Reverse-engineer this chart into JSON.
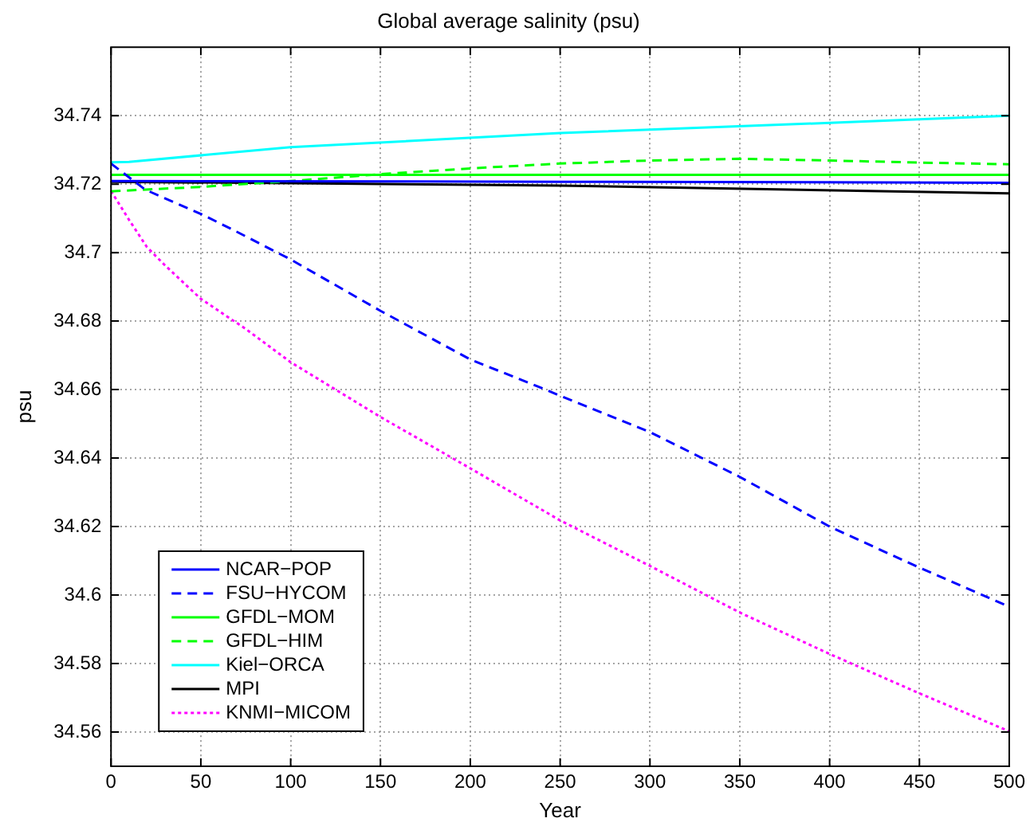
{
  "chart_data": {
    "type": "line",
    "title": "Global average salinity (psu)",
    "xlabel": "Year",
    "ylabel": "psu",
    "xlim": [
      0,
      500
    ],
    "xticks": [
      0,
      50,
      100,
      150,
      200,
      250,
      300,
      350,
      400,
      450,
      500
    ],
    "ylim": [
      34.55,
      34.76
    ],
    "yticks": [
      34.56,
      34.58,
      34.6,
      34.62,
      34.64,
      34.66,
      34.68,
      34.7,
      34.72,
      34.74
    ],
    "grid": true,
    "legend": "bottom left",
    "marker": "none",
    "series": [
      {
        "name": "NCAR−POP",
        "color": "#0000ff",
        "line_style": "solid",
        "x": [
          0,
          250,
          500
        ],
        "values": [
          34.7209,
          34.7207,
          34.7204
        ]
      },
      {
        "name": "FSU−HYCOM",
        "color": "#0000ff",
        "line_style": "dashed",
        "x": [
          0,
          19,
          50,
          67,
          100,
          150,
          200,
          240,
          250,
          300,
          350,
          400,
          450,
          500
        ],
        "values": [
          34.726,
          34.7184,
          34.7113,
          34.7069,
          34.698,
          34.683,
          34.6688,
          34.6604,
          34.6582,
          34.6476,
          34.6345,
          34.62,
          34.608,
          34.5966
        ]
      },
      {
        "name": "GFDL−MOM",
        "color": "#00ff00",
        "line_style": "solid",
        "x": [
          0,
          500
        ],
        "values": [
          34.7227,
          34.7227
        ]
      },
      {
        "name": "GFDL−HIM",
        "color": "#00ff00",
        "line_style": "dashed",
        "x": [
          0,
          50,
          100,
          150,
          200,
          250,
          300,
          350,
          400,
          450,
          500
        ],
        "values": [
          34.7179,
          34.7192,
          34.7209,
          34.7229,
          34.7246,
          34.726,
          34.7269,
          34.7274,
          34.7269,
          34.7263,
          34.7258
        ]
      },
      {
        "name": "Kiel−ORCA",
        "color": "#00ffff",
        "line_style": "solid",
        "x": [
          0,
          10,
          100,
          250,
          400,
          500
        ],
        "values": [
          34.7264,
          34.7265,
          34.7308,
          34.7349,
          34.7379,
          34.74
        ]
      },
      {
        "name": "MPI",
        "color": "#000000",
        "line_style": "solid",
        "x": [
          0,
          250,
          500
        ],
        "values": [
          34.7207,
          34.7196,
          34.7173
        ]
      },
      {
        "name": "KNMI−MICOM",
        "color": "#ff00ff",
        "line_style": "dotted",
        "x": [
          0,
          10,
          20,
          30,
          50,
          75,
          100,
          150,
          200,
          250,
          300,
          350,
          400,
          450,
          500
        ],
        "values": [
          34.718,
          34.7096,
          34.7016,
          34.6963,
          34.6865,
          34.6777,
          34.668,
          34.652,
          34.637,
          34.6218,
          34.6085,
          34.5949,
          34.5828,
          34.5713,
          34.5602
        ]
      }
    ]
  }
}
